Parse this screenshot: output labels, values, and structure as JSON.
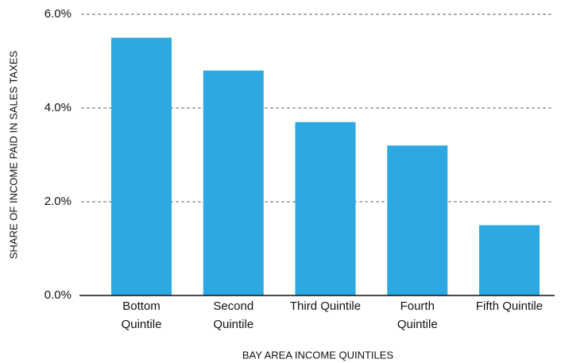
{
  "chart_data": {
    "type": "bar",
    "categories": [
      "Bottom Quintile",
      "Second Quintile",
      "Third Quintile",
      "Fourth Quintile",
      "Fifth Quintile"
    ],
    "values": [
      5.5,
      4.8,
      3.7,
      3.2,
      1.5
    ],
    "color": "#2ea8e0",
    "x_label": "BAY AREA INCOME QUINTILES",
    "y_label": "SHARE OF INCOME PAID IN SALES TAXES",
    "ylim": [
      0,
      6
    ],
    "yticks": [
      {
        "value": 0,
        "label": "0.0%"
      },
      {
        "value": 2,
        "label": "2.0%"
      },
      {
        "value": 4,
        "label": "4.0%"
      },
      {
        "value": 6,
        "label": "6.0%"
      }
    ],
    "grid": true
  }
}
